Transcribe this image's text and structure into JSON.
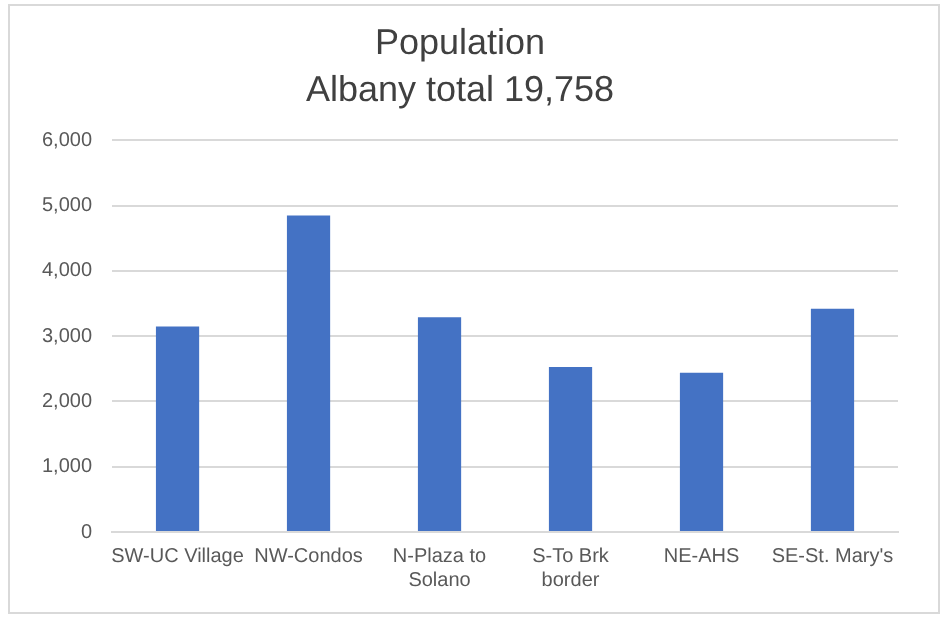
{
  "chart_data": {
    "type": "bar",
    "title": "Population",
    "subtitle": "Albany total 19,758",
    "categories": [
      "SW-UC Village",
      "NW-Condos",
      "N-Plaza to Solano",
      "S-To Brk border",
      "NE-AHS",
      "SE-St. Mary's"
    ],
    "values": [
      3150,
      4850,
      3290,
      2530,
      2440,
      3420
    ],
    "color": "#4472c4",
    "ylim": [
      0,
      6000
    ],
    "yticks": [
      0,
      {
        "value": 1000,
        "label": "1,000"
      },
      {
        "value": 2000,
        "label": "2,000"
      },
      {
        "value": 3000,
        "label": "3,000"
      },
      {
        "value": 4000,
        "label": "4,000"
      },
      {
        "value": 5000,
        "label": "5,000"
      },
      {
        "value": 6000,
        "label": "6,000"
      }
    ],
    "grid": "y"
  }
}
